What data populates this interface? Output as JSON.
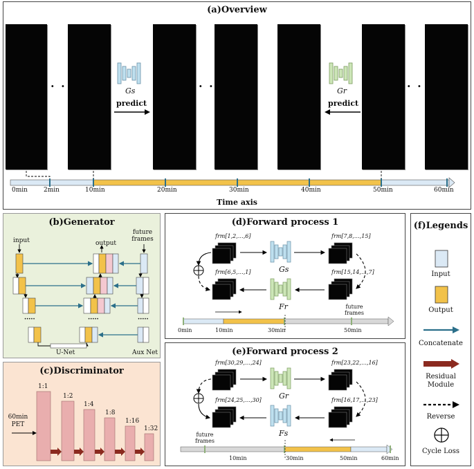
{
  "overview": {
    "title": "(a)Overview",
    "gs_label": "Gs",
    "gr_label": "Gr",
    "predict_left": "predict",
    "predict_right": "predict",
    "dots": "· · ·",
    "ticks": [
      "0min",
      "2min",
      "10min",
      "20min",
      "30min",
      "40min",
      "50min",
      "60min"
    ],
    "axis_title": "Time axis"
  },
  "generator": {
    "title": "(b)Generator",
    "input_label": "input",
    "output_label": "output",
    "future_label": "future frames",
    "unet_label": "U-Net",
    "aux_label": "Aux Net",
    "ellipsis": "·····"
  },
  "discriminator": {
    "title": "(c)Discriminator",
    "input_label": "60min PET",
    "ratios": [
      "1:1",
      "1:2",
      "1:4",
      "1:8",
      "1:16",
      "1:32"
    ]
  },
  "forward1": {
    "title": "(d)Forward process 1",
    "frm_tl": "frm[1,2,…,6]",
    "frm_tr": "frm[7,8,…,15]",
    "frm_bl": "frm[6,5,…,1]",
    "frm_br": "frm[15,14,…,7]",
    "g_top": "Gs",
    "g_bot": "Fr",
    "ticks": [
      "0min",
      "10min",
      "30min",
      "50min"
    ],
    "future_label": "future frames"
  },
  "forward2": {
    "title": "(e)Forward process 2",
    "frm_tl": "frm[30,29,…,24]",
    "frm_tr": "frm[23,22,…,16]",
    "frm_bl": "frm[24,25,…,30]",
    "frm_br": "frm[16,17,…,23]",
    "g_top": "Gr",
    "g_bot": "Fs",
    "ticks": [
      "10min",
      "30min",
      "50min",
      "60min"
    ],
    "future_label": "future frames"
  },
  "legends": {
    "title": "(f)Legends",
    "items": [
      "Input",
      "Output",
      "Concatenate",
      "Residual Module",
      "Reverse",
      "Cycle Loss"
    ]
  },
  "colors": {
    "input": "#dbe9f5",
    "output": "#f2c24a",
    "concat": "#2b6f8a",
    "residual": "#8b2a1f",
    "gen_blue": "#bfe0ef",
    "gen_green": "#cde6b8",
    "gen_bg": "#eaf1dc",
    "disc_bg": "#fbe4d2",
    "disc_bar": "#e9aeae",
    "axis_gray": "#d8d8d8"
  }
}
